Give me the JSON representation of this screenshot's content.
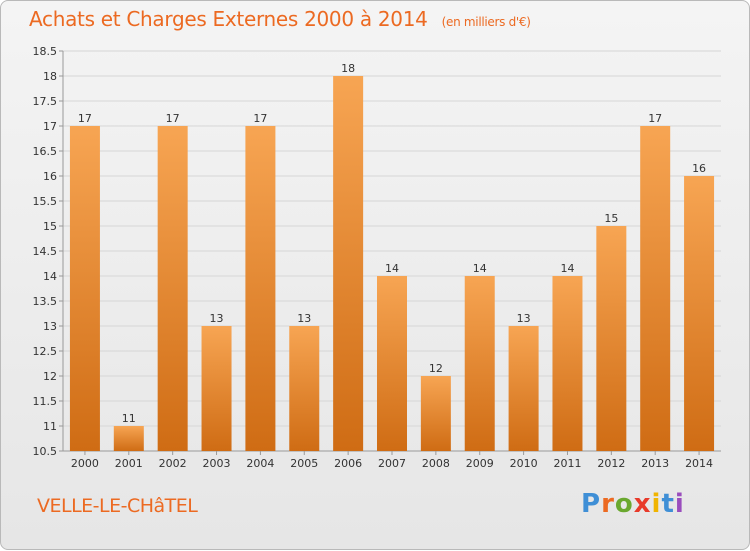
{
  "header": {
    "title": "Achats et Charges Externes 2000 à 2014",
    "unit": "(en milliers d'€)"
  },
  "footer": {
    "commune": "VELLE-LE-CHâTEL",
    "logo_letters": [
      "P",
      "r",
      "o",
      "x",
      "i",
      "t",
      "i"
    ],
    "logo_colors": [
      "#3f8fd6",
      "#ec6a22",
      "#6aa82f",
      "#e83a2a",
      "#f0b400",
      "#3f8fd6",
      "#9a4dbd"
    ]
  },
  "colors": {
    "bar_light": "#f7a553",
    "bar_dark": "#cf6c14",
    "text": "#333333",
    "accent": "#ec6a22"
  },
  "chart_data": {
    "type": "bar",
    "categories": [
      "2000",
      "2001",
      "2002",
      "2003",
      "2004",
      "2005",
      "2006",
      "2007",
      "2008",
      "2009",
      "2010",
      "2011",
      "2012",
      "2013",
      "2014"
    ],
    "values": [
      17,
      11,
      17,
      13,
      17,
      13,
      18,
      14,
      12,
      14,
      13,
      14,
      15,
      17,
      16
    ],
    "value_labels": [
      "17",
      "11",
      "17",
      "13",
      "17",
      "13",
      "18",
      "14",
      "12",
      "14",
      "13",
      "14",
      "15",
      "17",
      "16"
    ],
    "ylim": [
      10.5,
      18.5
    ],
    "yticks": [
      10.5,
      11,
      11.5,
      12,
      12.5,
      13,
      13.5,
      14,
      14.5,
      15,
      15.5,
      16,
      16.5,
      17,
      17.5,
      18,
      18.5
    ],
    "ytick_labels": [
      "10.5",
      "11",
      "11.5",
      "12",
      "12.5",
      "13",
      "13.5",
      "14",
      "14.5",
      "15",
      "15.5",
      "16",
      "16.5",
      "17",
      "17.5",
      "18",
      "18.5"
    ],
    "grid": true,
    "title": "Achats et Charges Externes 2000 à 2014",
    "xlabel": "",
    "ylabel": ""
  }
}
